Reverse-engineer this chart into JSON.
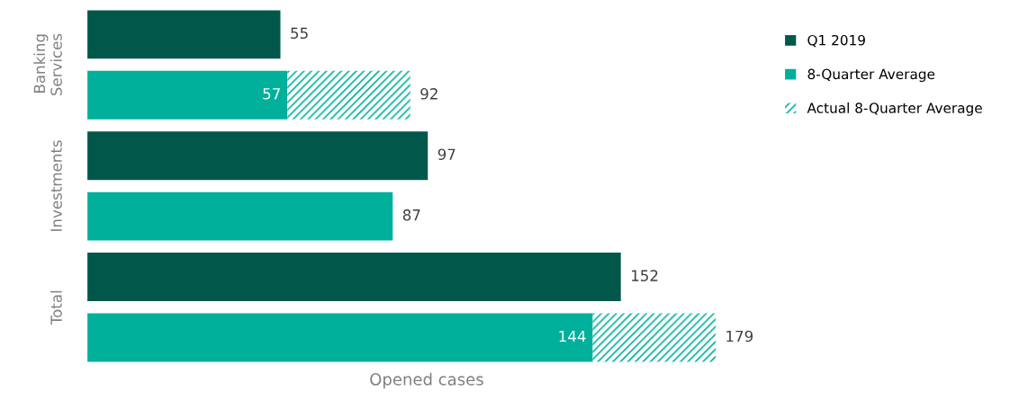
{
  "chart_data": {
    "type": "bar",
    "orientation": "horizontal",
    "stacked": true,
    "xlabel": "Opened cases",
    "categories": [
      "Banking Services",
      null,
      "Investments",
      null,
      "Total",
      null
    ],
    "series": [
      {
        "name": "Q1 2019",
        "color": "#02574b",
        "values": [
          55,
          null,
          97,
          null,
          152,
          null
        ]
      },
      {
        "name": "8-Quarter Average",
        "color": "#00b09b",
        "values": [
          null,
          57,
          null,
          87,
          null,
          144
        ],
        "value_labels": [
          null,
          "57",
          null,
          null,
          null,
          "144"
        ]
      },
      {
        "name": "Actual 8-Quarter Average",
        "color": "#00b09b",
        "values": [
          null,
          35,
          null,
          null,
          null,
          35
        ]
      }
    ],
    "totals": [
      "55",
      "92",
      "97",
      "87",
      "152",
      "179"
    ],
    "legend": "right",
    "grid": false
  }
}
